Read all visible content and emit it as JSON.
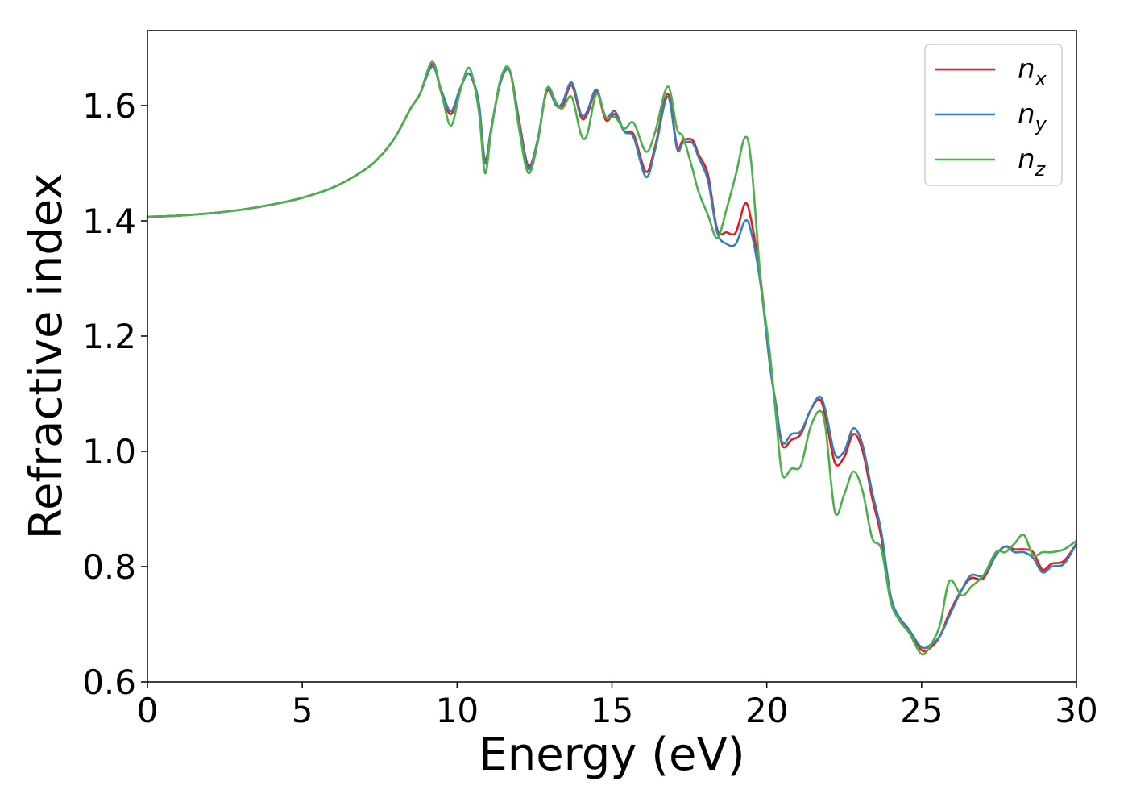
{
  "chart_data": {
    "type": "line",
    "title": "",
    "xlabel": "Energy (eV)",
    "ylabel": "Refractive index",
    "xlim": [
      0,
      30
    ],
    "ylim": [
      0.6,
      1.73
    ],
    "xticks": [
      0,
      5,
      10,
      15,
      20,
      25,
      30
    ],
    "xtick_labels": [
      "0",
      "5",
      "10",
      "15",
      "20",
      "25",
      "30"
    ],
    "yticks": [
      0.6,
      0.8,
      1.0,
      1.2,
      1.4,
      1.6
    ],
    "ytick_labels": [
      "0.6",
      "0.8",
      "1.0",
      "1.2",
      "1.4",
      "1.6"
    ],
    "grid": false,
    "legend": "top-right",
    "series": [
      {
        "name": "n",
        "subscript": "x",
        "color": "#e41a1c",
        "x": [
          0,
          1,
          2,
          3,
          4,
          5,
          6,
          7,
          7.5,
          8,
          8.5,
          8.8,
          9.2,
          9.5,
          9.8,
          10.1,
          10.4,
          10.7,
          10.9,
          11.1,
          11.4,
          11.7,
          12,
          12.3,
          12.6,
          12.9,
          13.2,
          13.4,
          13.7,
          14,
          14.2,
          14.5,
          14.8,
          15.1,
          15.4,
          15.7,
          16.1,
          16.4,
          16.8,
          17.1,
          17.3,
          17.6,
          17.8,
          18.1,
          18.4,
          18.7,
          19,
          19.3,
          19.5,
          19.8,
          20.1,
          20.3,
          20.5,
          20.8,
          21.1,
          21.4,
          21.7,
          21.9,
          22.2,
          22.5,
          22.8,
          23.1,
          23.4,
          23.7,
          24,
          24.3,
          24.6,
          25,
          25.3,
          25.6,
          25.9,
          26.3,
          26.6,
          27,
          27.4,
          27.7,
          28,
          28.3,
          28.6,
          28.9,
          29.2,
          29.6,
          30
        ],
        "y": [
          1.407,
          1.409,
          1.413,
          1.419,
          1.428,
          1.44,
          1.458,
          1.488,
          1.511,
          1.545,
          1.595,
          1.62,
          1.672,
          1.62,
          1.585,
          1.63,
          1.655,
          1.6,
          1.505,
          1.56,
          1.64,
          1.66,
          1.575,
          1.495,
          1.54,
          1.625,
          1.6,
          1.6,
          1.635,
          1.58,
          1.585,
          1.625,
          1.575,
          1.585,
          1.555,
          1.55,
          1.485,
          1.53,
          1.62,
          1.53,
          1.54,
          1.54,
          1.515,
          1.48,
          1.385,
          1.38,
          1.38,
          1.43,
          1.4,
          1.3,
          1.15,
          1.08,
          1.01,
          1.02,
          1.03,
          1.07,
          1.09,
          1.06,
          0.98,
          0.99,
          1.03,
          1.0,
          0.92,
          0.85,
          0.74,
          0.71,
          0.69,
          0.655,
          0.66,
          0.68,
          0.72,
          0.76,
          0.78,
          0.78,
          0.82,
          0.835,
          0.83,
          0.83,
          0.825,
          0.795,
          0.805,
          0.81,
          0.84
        ]
      },
      {
        "name": "n",
        "subscript": "y",
        "color": "#377eb8",
        "x": [
          0,
          1,
          2,
          3,
          4,
          5,
          6,
          7,
          7.5,
          8,
          8.5,
          8.8,
          9.2,
          9.5,
          9.8,
          10.1,
          10.4,
          10.7,
          10.9,
          11.1,
          11.4,
          11.7,
          12,
          12.3,
          12.6,
          12.9,
          13.2,
          13.4,
          13.7,
          14,
          14.2,
          14.5,
          14.8,
          15.1,
          15.4,
          15.7,
          16.1,
          16.4,
          16.8,
          17.1,
          17.3,
          17.6,
          17.8,
          18.1,
          18.4,
          18.7,
          19,
          19.3,
          19.5,
          19.8,
          20.1,
          20.3,
          20.5,
          20.8,
          21.1,
          21.4,
          21.7,
          21.9,
          22.2,
          22.5,
          22.8,
          23.1,
          23.4,
          23.7,
          24,
          24.3,
          24.6,
          25,
          25.3,
          25.6,
          25.9,
          26.3,
          26.6,
          27,
          27.4,
          27.7,
          28,
          28.3,
          28.6,
          28.9,
          29.2,
          29.6,
          30
        ],
        "y": [
          1.407,
          1.409,
          1.413,
          1.419,
          1.428,
          1.44,
          1.458,
          1.488,
          1.511,
          1.545,
          1.595,
          1.62,
          1.668,
          1.625,
          1.59,
          1.63,
          1.655,
          1.605,
          1.5,
          1.56,
          1.64,
          1.66,
          1.57,
          1.49,
          1.54,
          1.628,
          1.6,
          1.605,
          1.64,
          1.585,
          1.59,
          1.628,
          1.58,
          1.59,
          1.555,
          1.545,
          1.476,
          1.525,
          1.615,
          1.525,
          1.535,
          1.535,
          1.51,
          1.47,
          1.38,
          1.36,
          1.36,
          1.4,
          1.38,
          1.29,
          1.15,
          1.08,
          1.015,
          1.03,
          1.035,
          1.07,
          1.095,
          1.07,
          0.995,
          1.0,
          1.04,
          1.01,
          0.93,
          0.86,
          0.75,
          0.71,
          0.69,
          0.66,
          0.665,
          0.68,
          0.715,
          0.76,
          0.785,
          0.785,
          0.82,
          0.835,
          0.825,
          0.825,
          0.815,
          0.79,
          0.8,
          0.805,
          0.84
        ]
      },
      {
        "name": "n",
        "subscript": "z",
        "color": "#4daf4a",
        "x": [
          0,
          1,
          2,
          3,
          4,
          5,
          6,
          7,
          7.5,
          8,
          8.5,
          8.8,
          9.2,
          9.5,
          9.8,
          10.1,
          10.4,
          10.7,
          10.9,
          11.1,
          11.4,
          11.7,
          12,
          12.3,
          12.6,
          12.9,
          13.2,
          13.4,
          13.7,
          14,
          14.2,
          14.5,
          14.8,
          15.1,
          15.4,
          15.7,
          16.1,
          16.4,
          16.8,
          17.1,
          17.3,
          17.6,
          17.8,
          18.1,
          18.4,
          18.7,
          19,
          19.3,
          19.5,
          19.8,
          20.1,
          20.3,
          20.5,
          20.8,
          21.1,
          21.4,
          21.7,
          21.9,
          22.2,
          22.5,
          22.8,
          23.1,
          23.4,
          23.7,
          24,
          24.3,
          24.6,
          25,
          25.3,
          25.6,
          25.9,
          26.3,
          26.6,
          27,
          27.4,
          27.7,
          28,
          28.3,
          28.6,
          28.9,
          29.2,
          29.6,
          30
        ],
        "y": [
          1.407,
          1.409,
          1.413,
          1.419,
          1.428,
          1.44,
          1.458,
          1.488,
          1.511,
          1.545,
          1.595,
          1.62,
          1.676,
          1.62,
          1.565,
          1.625,
          1.665,
          1.59,
          1.483,
          1.555,
          1.645,
          1.662,
          1.56,
          1.483,
          1.535,
          1.63,
          1.605,
          1.595,
          1.615,
          1.55,
          1.55,
          1.62,
          1.58,
          1.58,
          1.56,
          1.57,
          1.52,
          1.555,
          1.633,
          1.56,
          1.545,
          1.49,
          1.45,
          1.41,
          1.37,
          1.42,
          1.48,
          1.545,
          1.5,
          1.3,
          1.17,
          1.06,
          0.96,
          0.97,
          0.975,
          1.04,
          1.07,
          1.04,
          0.895,
          0.925,
          0.965,
          0.93,
          0.85,
          0.83,
          0.74,
          0.705,
          0.685,
          0.648,
          0.665,
          0.7,
          0.775,
          0.75,
          0.765,
          0.785,
          0.825,
          0.825,
          0.84,
          0.855,
          0.82,
          0.825,
          0.825,
          0.83,
          0.845
        ]
      }
    ]
  }
}
